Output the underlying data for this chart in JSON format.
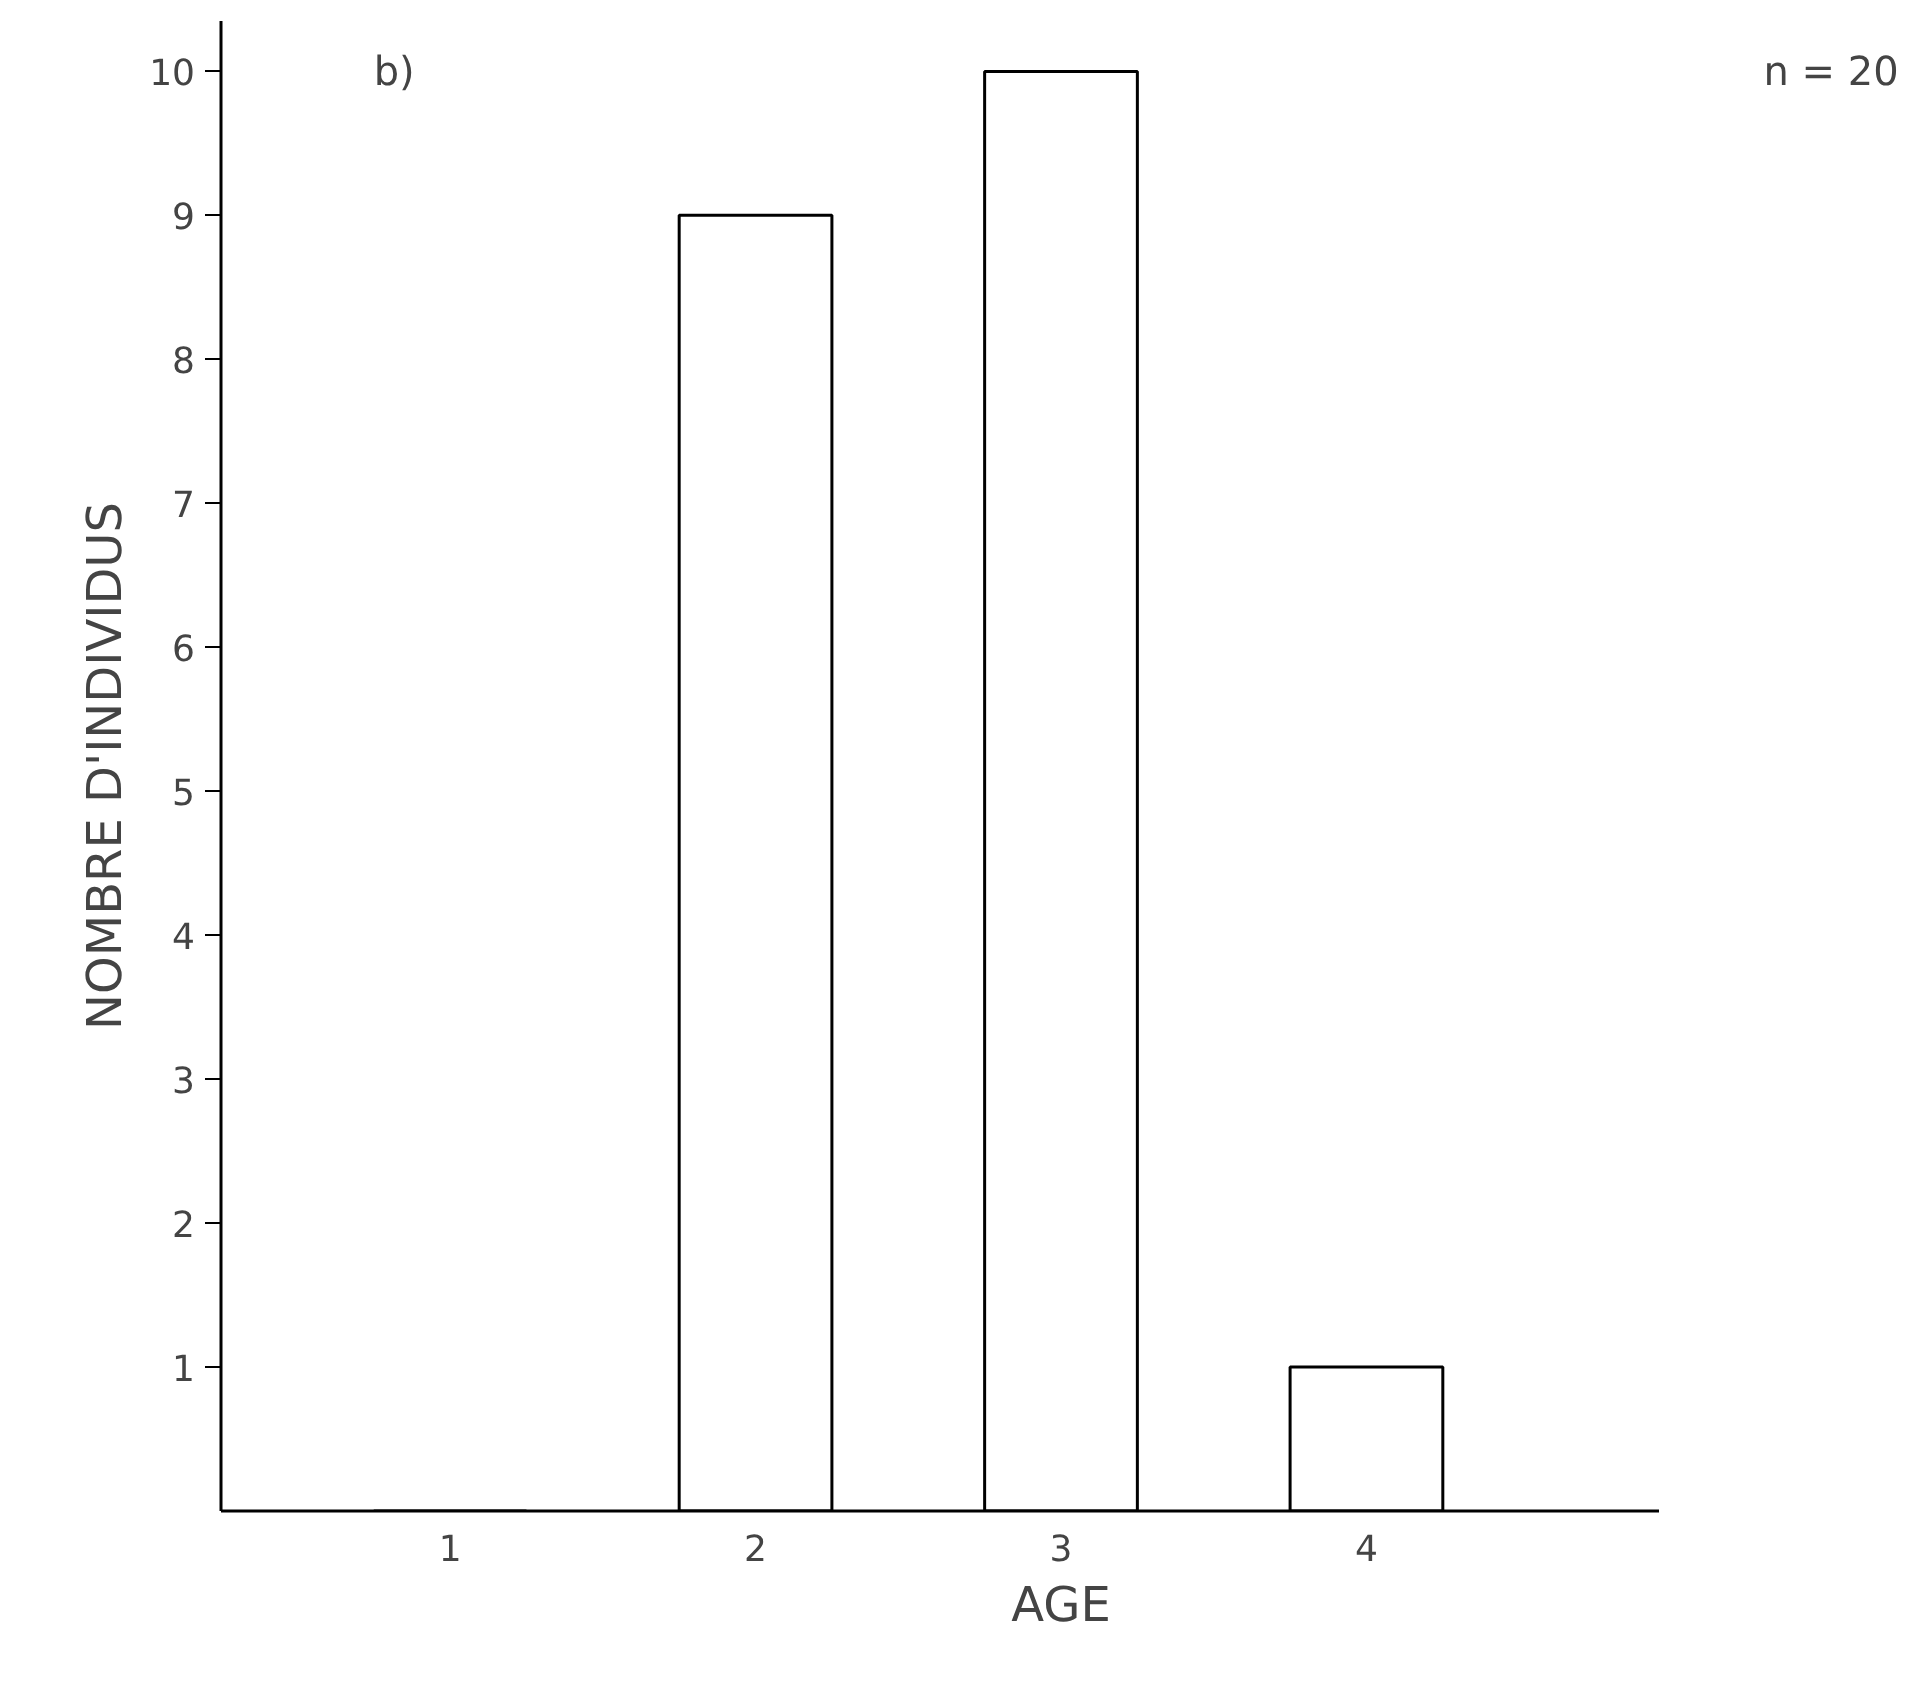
{
  "chart_data": {
    "type": "bar",
    "xlabel": "AGE",
    "ylabel": "NOMBRE D'INDIVIDUS",
    "categories": [
      "1",
      "2",
      "3",
      "4"
    ],
    "values": [
      0,
      9,
      10,
      1
    ],
    "color": "#ffffff",
    "ylim": [
      0,
      10.35
    ],
    "yticks": [
      1,
      2,
      3,
      4,
      5,
      6,
      7,
      8,
      9,
      10
    ],
    "grid": false,
    "annotations": [
      "b)",
      "n = 20"
    ]
  }
}
